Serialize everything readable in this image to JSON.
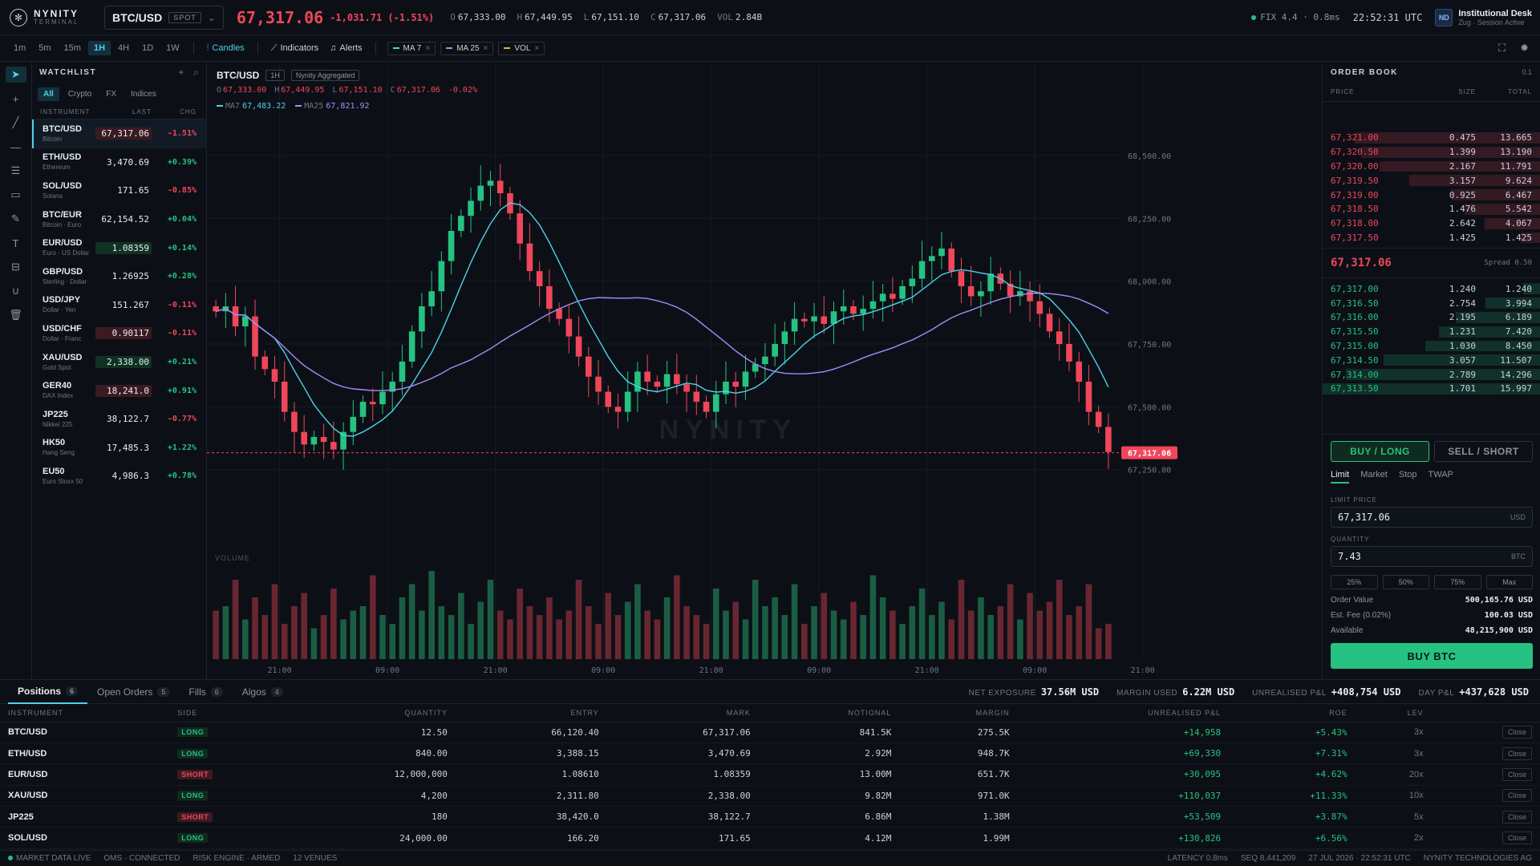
{
  "brand": {
    "name": "NYNITY",
    "sub": "TERMINAL"
  },
  "symbol": {
    "name": "BTC/USD",
    "type": "SPOT",
    "last": "67,317.06",
    "change": "-1,031.71 (-1.51%)",
    "open": "67,333.00",
    "high": "67,449.95",
    "low": "67,151.10",
    "close": "67,317.06",
    "vol": "2.84B"
  },
  "connection": {
    "fix": "FIX 4.4 · 0.8ms",
    "time": "22:52:31 UTC"
  },
  "user": {
    "initials": "ND",
    "desk": "Institutional Desk",
    "sub": "Zug · Session Active"
  },
  "toolbar": {
    "timeframes": [
      "1m",
      "5m",
      "15m",
      "1H",
      "4H",
      "1D",
      "1W"
    ],
    "active_tf": "1H",
    "candles": "Candles",
    "indicators": "Indicators",
    "alerts": "Alerts",
    "chips": [
      {
        "label": "MA 7",
        "color": "#4fd1e8"
      },
      {
        "label": "MA 25",
        "color": "#a78bfa"
      },
      {
        "label": "VOL",
        "color": "#e3b341"
      }
    ]
  },
  "watchlist": {
    "title": "WATCHLIST",
    "tabs": [
      "All",
      "Crypto",
      "FX",
      "Indices"
    ],
    "cols": [
      "INSTRUMENT",
      "LAST",
      "CHG"
    ],
    "items": [
      {
        "sym": "BTC/USD",
        "desc": "Bitcoin",
        "last": "67,317.06",
        "chg": "-1.51%",
        "dir": "dn",
        "hl": "dn"
      },
      {
        "sym": "ETH/USD",
        "desc": "Ethereum",
        "last": "3,470.69",
        "chg": "+0.39%",
        "dir": "up",
        "hl": ""
      },
      {
        "sym": "SOL/USD",
        "desc": "Solana",
        "last": "171.65",
        "chg": "-0.85%",
        "dir": "dn",
        "hl": ""
      },
      {
        "sym": "BTC/EUR",
        "desc": "Bitcoin · Euro",
        "last": "62,154.52",
        "chg": "+0.04%",
        "dir": "up",
        "hl": ""
      },
      {
        "sym": "EUR/USD",
        "desc": "Euro · US Dollar",
        "last": "1.08359",
        "chg": "+0.14%",
        "dir": "up",
        "hl": "up"
      },
      {
        "sym": "GBP/USD",
        "desc": "Sterling · Dollar",
        "last": "1.26925",
        "chg": "+0.28%",
        "dir": "up",
        "hl": ""
      },
      {
        "sym": "USD/JPY",
        "desc": "Dollar · Yen",
        "last": "151.267",
        "chg": "-0.11%",
        "dir": "dn",
        "hl": ""
      },
      {
        "sym": "USD/CHF",
        "desc": "Dollar · Franc",
        "last": "0.90117",
        "chg": "-0.11%",
        "dir": "dn",
        "hl": "dn"
      },
      {
        "sym": "XAU/USD",
        "desc": "Gold Spot",
        "last": "2,338.00",
        "chg": "+0.21%",
        "dir": "up",
        "hl": "up"
      },
      {
        "sym": "GER40",
        "desc": "DAX Index",
        "last": "18,241.0",
        "chg": "+0.91%",
        "dir": "up",
        "hl": "dn"
      },
      {
        "sym": "JP225",
        "desc": "Nikkei 225",
        "last": "38,122.7",
        "chg": "-0.77%",
        "dir": "dn",
        "hl": ""
      },
      {
        "sym": "HK50",
        "desc": "Hang Seng",
        "last": "17,485.3",
        "chg": "+1.22%",
        "dir": "up",
        "hl": ""
      },
      {
        "sym": "EU50",
        "desc": "Euro Stoxx 50",
        "last": "4,986.3",
        "chg": "+0.78%",
        "dir": "up",
        "hl": ""
      }
    ]
  },
  "chart": {
    "sym": "BTC/USD",
    "tf": "1H",
    "source": "Nynity Aggregated",
    "chg": "-0.02%",
    "ma7": "67,483.22",
    "ma25": "67,821.92",
    "vol_label": "VOLUME",
    "watermark": "NYNITY"
  },
  "chart_data": {
    "type": "candlestick",
    "y_ticks": [
      68500,
      68250,
      68000,
      67750,
      67500,
      67250
    ],
    "y_tick_labels": [
      "68,500.00",
      "68,250.00",
      "68,000.00",
      "67,750.00",
      "67,500.00",
      "67,250.00"
    ],
    "ylim": [
      67150,
      68650
    ],
    "x_tick_labels": [
      "21:00",
      "09:00",
      "21:00",
      "09:00",
      "21:00",
      "09:00",
      "21:00",
      "09:00",
      "21:00"
    ],
    "last_price": 67317.06,
    "last_label": "67,317.06",
    "closes": [
      67880,
      67900,
      67820,
      67860,
      67700,
      67650,
      67600,
      67480,
      67400,
      67350,
      67380,
      67360,
      67330,
      67400,
      67460,
      67520,
      67510,
      67560,
      67600,
      67680,
      67800,
      67900,
      67960,
      68080,
      68200,
      68260,
      68320,
      68380,
      68400,
      68350,
      68270,
      68150,
      68040,
      67980,
      67890,
      67850,
      67780,
      67700,
      67620,
      67560,
      67500,
      67480,
      67560,
      67640,
      67600,
      67580,
      67630,
      67590,
      67560,
      67520,
      67480,
      67550,
      67600,
      67580,
      67640,
      67670,
      67700,
      67750,
      67800,
      67850,
      67840,
      67860,
      67830,
      67880,
      67900,
      67870,
      67890,
      67920,
      67950,
      67930,
      67980,
      68010,
      68080,
      68100,
      68130,
      68040,
      67980,
      67940,
      67960,
      68030,
      67990,
      67940,
      67960,
      67920,
      67870,
      67800,
      67750,
      67680,
      67600,
      67480,
      67420,
      67320
    ],
    "volumes": [
      0.55,
      0.6,
      0.9,
      0.45,
      0.7,
      0.5,
      0.85,
      0.4,
      0.6,
      0.75,
      0.35,
      0.5,
      0.8,
      0.45,
      0.55,
      0.6,
      0.95,
      0.5,
      0.4,
      0.7,
      0.85,
      0.55,
      1.0,
      0.6,
      0.5,
      0.75,
      0.4,
      0.65,
      0.9,
      0.55,
      0.45,
      0.8,
      0.6,
      0.5,
      0.7,
      0.45,
      0.55,
      0.9,
      0.6,
      0.4,
      0.75,
      0.5,
      0.65,
      0.85,
      0.55,
      0.45,
      0.7,
      0.95,
      0.6,
      0.5,
      0.4,
      0.8,
      0.55,
      0.65,
      0.45,
      0.9,
      0.6,
      0.7,
      0.5,
      0.85,
      0.4,
      0.6,
      0.75,
      0.55,
      0.45,
      0.65,
      0.5,
      0.95,
      0.7,
      0.55,
      0.4,
      0.6,
      0.8,
      0.5,
      0.65,
      0.45,
      0.9,
      0.55,
      0.7,
      0.5,
      0.6,
      0.85,
      0.45,
      0.75,
      0.55,
      0.65,
      0.9,
      0.5,
      0.6,
      0.85,
      0.35,
      0.4
    ]
  },
  "orderbook": {
    "title": "ORDER BOOK",
    "prec": "0.1",
    "cols": [
      "PRICE",
      "SIZE",
      "TOTAL"
    ],
    "asks": [
      [
        "67,321.00",
        "0.475",
        "13.665"
      ],
      [
        "67,320.50",
        "1.399",
        "13.190"
      ],
      [
        "67,320.00",
        "2.167",
        "11.791"
      ],
      [
        "67,319.50",
        "3.157",
        "9.624"
      ],
      [
        "67,319.00",
        "0.925",
        "6.467"
      ],
      [
        "67,318.50",
        "1.476",
        "5.542"
      ],
      [
        "67,318.00",
        "2.642",
        "4.067"
      ],
      [
        "67,317.50",
        "1.425",
        "1.425"
      ]
    ],
    "mid": "67,317.06",
    "spread": "Spread 0.50",
    "bids": [
      [
        "67,317.00",
        "1.240",
        "1.240"
      ],
      [
        "67,316.50",
        "2.754",
        "3.994"
      ],
      [
        "67,316.00",
        "2.195",
        "6.189"
      ],
      [
        "67,315.50",
        "1.231",
        "7.420"
      ],
      [
        "67,315.00",
        "1.030",
        "8.450"
      ],
      [
        "67,314.50",
        "3.057",
        "11.507"
      ],
      [
        "67,314.00",
        "2.789",
        "14.296"
      ],
      [
        "67,313.50",
        "1.701",
        "15.997"
      ]
    ]
  },
  "ticket": {
    "buy": "BUY / LONG",
    "sell": "SELL / SHORT",
    "tabs": [
      "Limit",
      "Market",
      "Stop",
      "TWAP"
    ],
    "limit_label": "LIMIT PRICE",
    "limit_value": "67,317.06",
    "limit_unit": "USD",
    "qty_label": "QUANTITY",
    "qty_value": "7.43",
    "qty_unit": "BTC",
    "pcts": [
      "25%",
      "50%",
      "75%",
      "Max"
    ],
    "order_value_k": "Order Value",
    "order_value": "500,165.76 USD",
    "fee_k": "Est. Fee (0.02%)",
    "fee": "100.03 USD",
    "avail_k": "Available",
    "avail": "48,215,900 USD",
    "submit": "BUY BTC"
  },
  "positions": {
    "tabs": [
      {
        "label": "Positions",
        "n": "6"
      },
      {
        "label": "Open Orders",
        "n": "5"
      },
      {
        "label": "Fills",
        "n": "6"
      },
      {
        "label": "Algos",
        "n": "4"
      }
    ],
    "stats": [
      {
        "k": "NET EXPOSURE",
        "v": "37.56M USD",
        "c": ""
      },
      {
        "k": "MARGIN USED",
        "v": "6.22M USD",
        "c": ""
      },
      {
        "k": "UNREALISED P&L",
        "v": "+408,754 USD",
        "c": "up"
      },
      {
        "k": "DAY P&L",
        "v": "+437,628 USD",
        "c": "up"
      }
    ],
    "cols": [
      "INSTRUMENT",
      "SIDE",
      "QUANTITY",
      "ENTRY",
      "MARK",
      "NOTIONAL",
      "MARGIN",
      "UNREALISED P&L",
      "ROE",
      "LEV",
      ""
    ],
    "close_label": "Close",
    "rows": [
      {
        "sym": "BTC/USD",
        "side": "LONG",
        "qty": "12.50",
        "entry": "66,120.40",
        "mark": "67,317.06",
        "notional": "841.5K",
        "margin": "275.5K",
        "pnl": "+14,958",
        "roe": "+5.43%",
        "lev": "3x"
      },
      {
        "sym": "ETH/USD",
        "side": "LONG",
        "qty": "840.00",
        "entry": "3,388.15",
        "mark": "3,470.69",
        "notional": "2.92M",
        "margin": "948.7K",
        "pnl": "+69,330",
        "roe": "+7.31%",
        "lev": "3x"
      },
      {
        "sym": "EUR/USD",
        "side": "SHORT",
        "qty": "12,000,000",
        "entry": "1.08610",
        "mark": "1.08359",
        "notional": "13.00M",
        "margin": "651.7K",
        "pnl": "+30,095",
        "roe": "+4.62%",
        "lev": "20x"
      },
      {
        "sym": "XAU/USD",
        "side": "LONG",
        "qty": "4,200",
        "entry": "2,311.80",
        "mark": "2,338.00",
        "notional": "9.82M",
        "margin": "971.0K",
        "pnl": "+110,037",
        "roe": "+11.33%",
        "lev": "10x"
      },
      {
        "sym": "JP225",
        "side": "SHORT",
        "qty": "180",
        "entry": "38,420.0",
        "mark": "38,122.7",
        "notional": "6.86M",
        "margin": "1.38M",
        "pnl": "+53,509",
        "roe": "+3.87%",
        "lev": "5x"
      },
      {
        "sym": "SOL/USD",
        "side": "LONG",
        "qty": "24,000.00",
        "entry": "166.20",
        "mark": "171.65",
        "notional": "4.12M",
        "margin": "1.99M",
        "pnl": "+130,826",
        "roe": "+6.56%",
        "lev": "2x"
      }
    ]
  },
  "status": {
    "left": [
      "MARKET DATA LIVE",
      "OMS · CONNECTED",
      "RISK ENGINE · ARMED",
      "12 VENUES"
    ],
    "right": [
      "LATENCY 0.8ms",
      "SEQ 8,441,209",
      "27 JUL 2026 · 22:52:31 UTC",
      "NYNITY TECHNOLOGIES AG"
    ]
  },
  "colors": {
    "up": "#26c281",
    "down": "#f0465a",
    "ma7": "#4fd1e8",
    "ma25": "#a78bfa",
    "accent": "#4fd1e8"
  }
}
